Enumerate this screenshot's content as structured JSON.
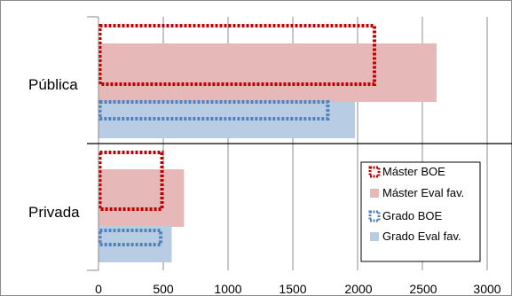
{
  "chart_data": {
    "type": "bar",
    "orientation": "horizontal",
    "categories": [
      "Pública",
      "Privada"
    ],
    "series": [
      {
        "name": "Máster BOE",
        "values": [
          2130,
          490
        ],
        "color": "#c00000",
        "style": "dotted-outline"
      },
      {
        "name": "Máster Eval fav.",
        "values": [
          2610,
          660
        ],
        "color": "#e6b8b7",
        "style": "filled"
      },
      {
        "name": "Grado BOE",
        "values": [
          1770,
          480
        ],
        "color": "#4f81bd",
        "style": "dotted-outline"
      },
      {
        "name": "Grado Eval fav.",
        "values": [
          1980,
          565
        ],
        "color": "#b8cce4",
        "style": "filled"
      }
    ],
    "x_ticks": [
      "0",
      "500",
      "1000",
      "1500",
      "2000",
      "2500",
      "3000"
    ],
    "xlim": [
      0,
      3000
    ],
    "grid": true,
    "legend_position": "bottom-right"
  }
}
